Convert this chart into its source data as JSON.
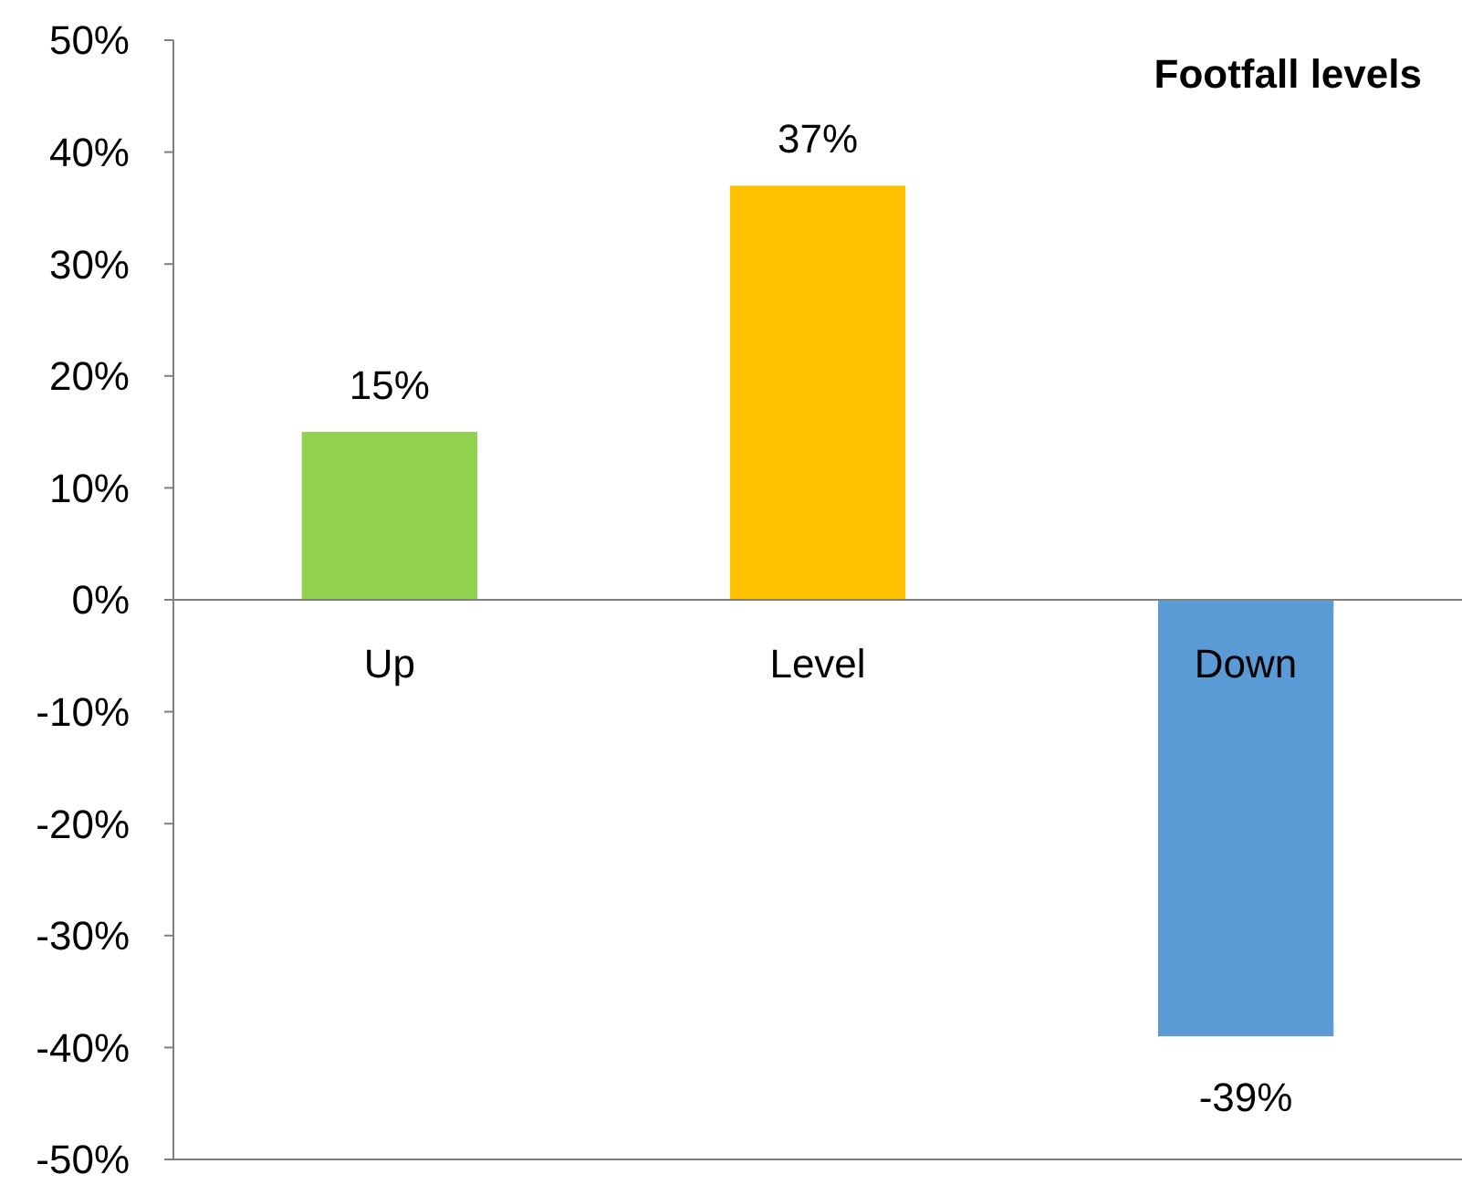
{
  "chart_data": {
    "type": "bar",
    "title": "Footfall levels",
    "categories": [
      "Up",
      "Level",
      "Down"
    ],
    "values": [
      15,
      37,
      -39
    ],
    "colors": [
      "#92d050",
      "#ffc000",
      "#5b9bd5"
    ],
    "ylim": [
      -50,
      50
    ],
    "yticks": [
      {
        "value": -50,
        "label": "-50%"
      },
      {
        "value": -40,
        "label": "-40%"
      },
      {
        "value": -30,
        "label": "-30%"
      },
      {
        "value": -20,
        "label": "-20%"
      },
      {
        "value": -10,
        "label": "-10%"
      },
      {
        "value": 0,
        "label": "0%"
      },
      {
        "value": 10,
        "label": "10%"
      },
      {
        "value": 20,
        "label": "20%"
      },
      {
        "value": 30,
        "label": "30%"
      },
      {
        "value": 40,
        "label": "40%"
      },
      {
        "value": 50,
        "label": "50%"
      }
    ],
    "value_labels": [
      "15%",
      "37%",
      "-39%"
    ],
    "grid": false
  }
}
